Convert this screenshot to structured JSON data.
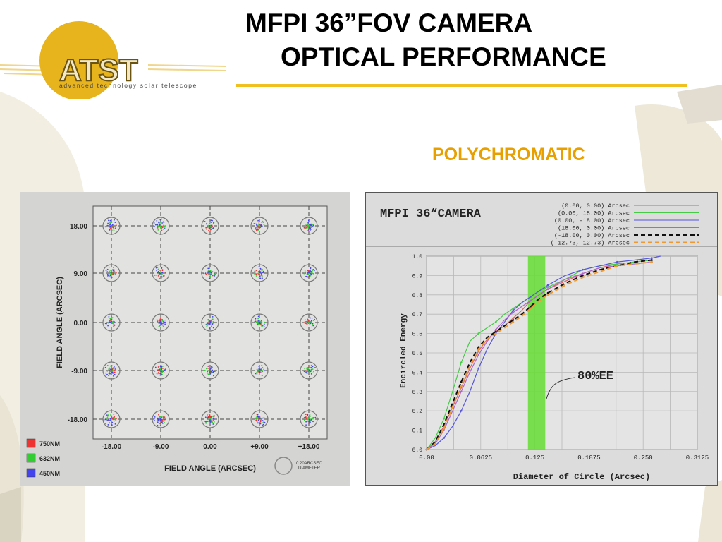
{
  "header": {
    "title_line1": "MFPI 36”FOV CAMERA",
    "title_line2": "OPTICAL PERFORMANCE",
    "subtitle": "POLYCHROMATIC",
    "accent_color": "#f0c020",
    "subtitle_color": "#e8a000"
  },
  "logo": {
    "text": "ATST",
    "tagline": "advanced technology solar telescope",
    "color": "#e8b020"
  },
  "chart_data": [
    {
      "type": "scatter",
      "x_ticks": [
        "-18.00",
        "-9.00",
        "0.00",
        "+9.00",
        "+18.00"
      ],
      "y_ticks": [
        "18.00",
        "9.00",
        "0.00",
        "-9.00",
        "-18.00"
      ],
      "xlabel": "FIELD ANGLE  (ARCSEC)",
      "ylabel": "FIELD ANGLE  (ARCSEC)",
      "grid": true,
      "field_points_x": [
        -18,
        -9,
        0,
        9,
        18
      ],
      "field_points_y": [
        18,
        9,
        0,
        -9,
        -18
      ],
      "reference_circle_label": "0.20ARCSEC DIAMETER",
      "legend": [
        {
          "name": "750NM",
          "color": "#ee3333"
        },
        {
          "name": "632NM",
          "color": "#33cc33"
        },
        {
          "name": "450NM",
          "color": "#4444ee"
        }
      ],
      "legend_position": "bottom-left"
    },
    {
      "type": "line",
      "title": "MFPI 36“CAMERA",
      "xlabel": "Diameter of Circle (Arcsec)",
      "ylabel": "Encircled Energy",
      "xlim": [
        0,
        0.3125
      ],
      "ylim": [
        0,
        1.0
      ],
      "x_ticks": [
        "0.00",
        "0.0625",
        "0.125",
        "0.1875",
        "0.250",
        "0.3125"
      ],
      "y_ticks": [
        "0.0",
        "0.1",
        "0.2",
        "0.3",
        "0.4",
        "0.5",
        "0.6",
        "0.7",
        "0.8",
        "0.9",
        "1.0"
      ],
      "grid": true,
      "annotation": "80%EE",
      "highlight_band": [
        0.117,
        0.137
      ],
      "band_color": "#66dd33",
      "series": [
        {
          "name": "(0.00,   0.00) Arcsec",
          "color": "#e06060",
          "dash": "solid",
          "x": [
            0,
            0.01,
            0.02,
            0.03,
            0.04,
            0.05,
            0.06,
            0.07,
            0.08,
            0.09,
            0.1,
            0.11,
            0.12,
            0.13,
            0.14,
            0.16,
            0.18,
            0.2,
            0.22,
            0.24,
            0.26
          ],
          "y": [
            0,
            0.04,
            0.12,
            0.22,
            0.32,
            0.42,
            0.51,
            0.57,
            0.61,
            0.64,
            0.68,
            0.72,
            0.77,
            0.8,
            0.83,
            0.87,
            0.91,
            0.94,
            0.96,
            0.97,
            0.98
          ]
        },
        {
          "name": "(0.00,  18.00) Arcsec",
          "color": "#44cc44",
          "dash": "solid",
          "x": [
            0,
            0.01,
            0.02,
            0.03,
            0.04,
            0.05,
            0.06,
            0.07,
            0.08,
            0.09,
            0.1,
            0.11,
            0.12,
            0.13,
            0.14,
            0.16,
            0.18,
            0.2,
            0.22,
            0.24,
            0.26
          ],
          "y": [
            0,
            0.06,
            0.16,
            0.3,
            0.45,
            0.56,
            0.6,
            0.63,
            0.66,
            0.7,
            0.73,
            0.76,
            0.79,
            0.82,
            0.84,
            0.88,
            0.93,
            0.95,
            0.96,
            0.97,
            0.98
          ]
        },
        {
          "name": "(0.00, -18.00) Arcsec",
          "color": "#5555dd",
          "dash": "solid",
          "x": [
            0,
            0.01,
            0.02,
            0.03,
            0.04,
            0.05,
            0.06,
            0.07,
            0.08,
            0.09,
            0.1,
            0.11,
            0.12,
            0.13,
            0.14,
            0.16,
            0.18,
            0.2,
            0.22,
            0.24,
            0.26,
            0.27
          ],
          "y": [
            0,
            0.02,
            0.06,
            0.12,
            0.2,
            0.3,
            0.42,
            0.52,
            0.6,
            0.66,
            0.72,
            0.76,
            0.79,
            0.82,
            0.85,
            0.9,
            0.93,
            0.95,
            0.97,
            0.98,
            0.99,
            1.0
          ]
        },
        {
          "name": "(18.00,   0.00) Arcsec",
          "color": "#aa66cc",
          "dash": "solid",
          "x": [
            0,
            0.01,
            0.02,
            0.03,
            0.04,
            0.05,
            0.06,
            0.07,
            0.08,
            0.09,
            0.1,
            0.11,
            0.12,
            0.13,
            0.14,
            0.16,
            0.18,
            0.2,
            0.22,
            0.24,
            0.26
          ],
          "y": [
            0,
            0.03,
            0.1,
            0.2,
            0.3,
            0.4,
            0.49,
            0.56,
            0.62,
            0.67,
            0.71,
            0.74,
            0.77,
            0.8,
            0.83,
            0.88,
            0.91,
            0.94,
            0.95,
            0.96,
            0.97
          ]
        },
        {
          "name": "(-18.00,   0.00) Arcsec",
          "color": "#111111",
          "dash": "dash",
          "x": [
            0,
            0.01,
            0.02,
            0.03,
            0.04,
            0.05,
            0.06,
            0.07,
            0.08,
            0.09,
            0.1,
            0.11,
            0.12,
            0.13,
            0.14,
            0.16,
            0.18,
            0.2,
            0.22,
            0.24,
            0.26
          ],
          "y": [
            0,
            0.04,
            0.13,
            0.24,
            0.35,
            0.45,
            0.53,
            0.58,
            0.61,
            0.64,
            0.67,
            0.7,
            0.74,
            0.78,
            0.81,
            0.86,
            0.9,
            0.93,
            0.95,
            0.97,
            0.98
          ]
        },
        {
          "name": "( 12.73,  12.73) Arcsec",
          "color": "#ee9933",
          "dash": "dash",
          "x": [
            0,
            0.01,
            0.02,
            0.03,
            0.04,
            0.05,
            0.06,
            0.07,
            0.08,
            0.09,
            0.1,
            0.11,
            0.12,
            0.13,
            0.14,
            0.16,
            0.18,
            0.2,
            0.22,
            0.24,
            0.26
          ],
          "y": [
            0,
            0.03,
            0.11,
            0.22,
            0.33,
            0.43,
            0.52,
            0.57,
            0.6,
            0.63,
            0.66,
            0.69,
            0.73,
            0.77,
            0.8,
            0.85,
            0.89,
            0.92,
            0.95,
            0.96,
            0.97
          ]
        }
      ],
      "legend_position": "top-right"
    }
  ]
}
